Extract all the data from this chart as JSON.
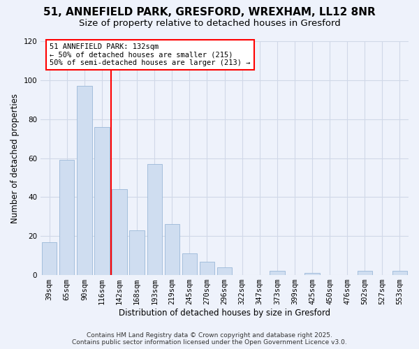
{
  "title": "51, ANNEFIELD PARK, GRESFORD, WREXHAM, LL12 8NR",
  "subtitle": "Size of property relative to detached houses in Gresford",
  "xlabel": "Distribution of detached houses by size in Gresford",
  "ylabel": "Number of detached properties",
  "bar_color": "#cfddf0",
  "bar_edge_color": "#9ab8d8",
  "categories": [
    "39sqm",
    "65sqm",
    "90sqm",
    "116sqm",
    "142sqm",
    "168sqm",
    "193sqm",
    "219sqm",
    "245sqm",
    "270sqm",
    "296sqm",
    "322sqm",
    "347sqm",
    "373sqm",
    "399sqm",
    "425sqm",
    "450sqm",
    "476sqm",
    "502sqm",
    "527sqm",
    "553sqm"
  ],
  "values": [
    17,
    59,
    97,
    76,
    44,
    23,
    57,
    26,
    11,
    7,
    4,
    0,
    0,
    2,
    0,
    1,
    0,
    0,
    2,
    0,
    2
  ],
  "ylim": [
    0,
    120
  ],
  "yticks": [
    0,
    20,
    40,
    60,
    80,
    100,
    120
  ],
  "property_line_label": "51 ANNEFIELD PARK: 132sqm",
  "annotation_smaller": "← 50% of detached houses are smaller (215)",
  "annotation_larger": "50% of semi-detached houses are larger (213) →",
  "footer1": "Contains HM Land Registry data © Crown copyright and database right 2025.",
  "footer2": "Contains public sector information licensed under the Open Government Licence v3.0.",
  "background_color": "#eef2fb",
  "grid_color": "#d0d8e8",
  "title_fontsize": 11,
  "subtitle_fontsize": 9.5,
  "axis_label_fontsize": 8.5,
  "tick_fontsize": 7.5,
  "footer_fontsize": 6.5
}
